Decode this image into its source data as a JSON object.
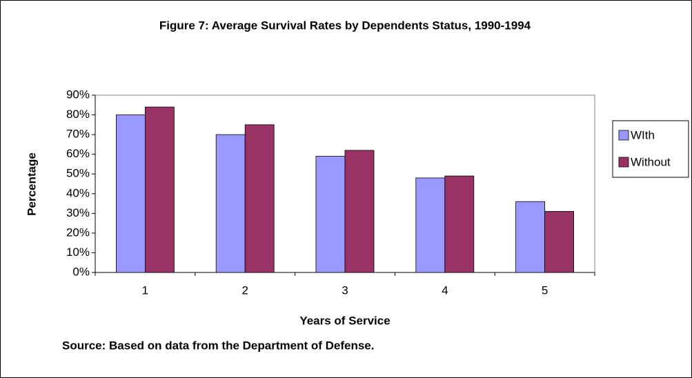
{
  "chart_data": {
    "type": "bar",
    "title": "Figure 7: Average Survival Rates by Dependents Status, 1990-1994",
    "x_label": "Years of Service",
    "y_label": "Percentage",
    "source": "Source: Based on data from the Department of Defense.",
    "categories": [
      "1",
      "2",
      "3",
      "4",
      "5"
    ],
    "series": [
      {
        "name": "WIth",
        "color": "#9999ff",
        "values": [
          80,
          70,
          59,
          48,
          36
        ]
      },
      {
        "name": "Without",
        "color": "#993366",
        "values": [
          84,
          75,
          62,
          49,
          31
        ]
      }
    ],
    "ylim": [
      0,
      90
    ],
    "yticks": [
      {
        "value": 0,
        "label": "0%"
      },
      {
        "value": 10,
        "label": "10%"
      },
      {
        "value": 20,
        "label": "20%"
      },
      {
        "value": 30,
        "label": "30%"
      },
      {
        "value": 40,
        "label": "40%"
      },
      {
        "value": 50,
        "label": "50%"
      },
      {
        "value": 60,
        "label": "60%"
      },
      {
        "value": 70,
        "label": "70%"
      },
      {
        "value": 80,
        "label": "80%"
      },
      {
        "value": 90,
        "label": "90%"
      }
    ],
    "legend": "right"
  }
}
